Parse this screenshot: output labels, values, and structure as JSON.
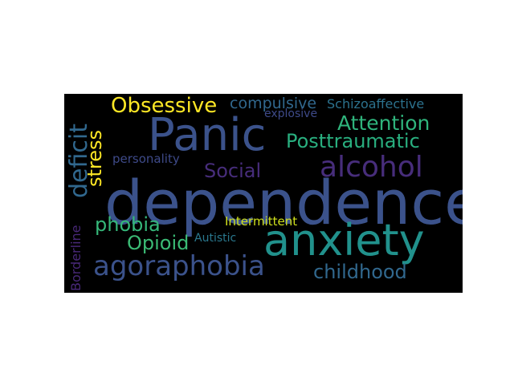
{
  "word_cloud": {
    "background": "#000000",
    "words": [
      {
        "key": "dependence",
        "text": "dependence",
        "color": "#3b528b"
      },
      {
        "key": "panic",
        "text": "Panic",
        "color": "#3b528b"
      },
      {
        "key": "anxiety",
        "text": "anxiety",
        "color": "#21918c"
      },
      {
        "key": "agoraphobia",
        "text": "agoraphobia",
        "color": "#3b528b"
      },
      {
        "key": "alcohol",
        "text": "alcohol",
        "color": "#472d7b"
      },
      {
        "key": "obsessive",
        "text": "Obsessive",
        "color": "#fde725"
      },
      {
        "key": "attention",
        "text": "Attention",
        "color": "#2fb47c"
      },
      {
        "key": "posttraumatic",
        "text": "Posttraumatic",
        "color": "#29af7f"
      },
      {
        "key": "social",
        "text": "Social",
        "color": "#472d7b"
      },
      {
        "key": "childhood",
        "text": "childhood",
        "color": "#31688e"
      },
      {
        "key": "phobia",
        "text": "phobia",
        "color": "#35b779"
      },
      {
        "key": "opioid",
        "text": "Opioid",
        "color": "#3bbb75"
      },
      {
        "key": "compulsive",
        "text": "compulsive",
        "color": "#31688e"
      },
      {
        "key": "schizoaffective",
        "text": "Schizoaffective",
        "color": "#2c728e"
      },
      {
        "key": "explosive",
        "text": "explosive",
        "color": "#3e4a89"
      },
      {
        "key": "personality",
        "text": "personality",
        "color": "#3e4a89"
      },
      {
        "key": "intermittent",
        "text": "Intermittent",
        "color": "#d0e11c"
      },
      {
        "key": "autistic",
        "text": "Autistic",
        "color": "#2a788e"
      },
      {
        "key": "deficit",
        "text": "deficit",
        "color": "#31688e"
      },
      {
        "key": "stress",
        "text": "stress",
        "color": "#fde725"
      },
      {
        "key": "borderline",
        "text": "Borderline",
        "color": "#482878"
      }
    ]
  }
}
